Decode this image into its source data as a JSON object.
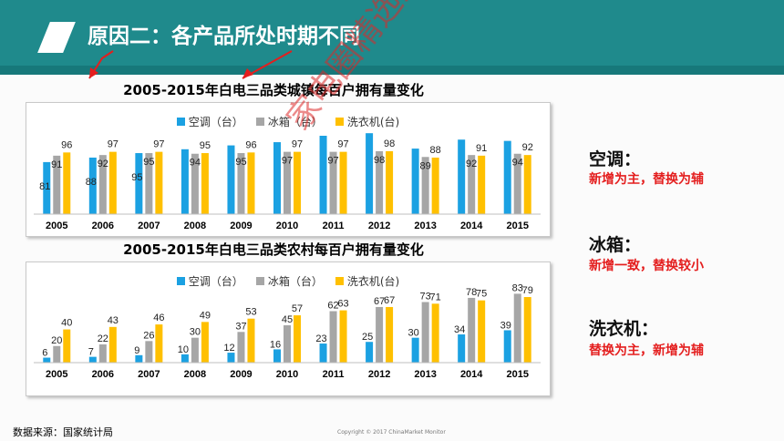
{
  "header": {
    "title": "原因二：各产品所处时期不同"
  },
  "colors": {
    "ac": "#1ba1e2",
    "fridge": "#a6a6a6",
    "washer": "#ffc000",
    "header": "#1f8a8c",
    "accent_red": "#e41e1e"
  },
  "chart_data": [
    {
      "type": "bar",
      "title": "2005-2015年白电三品类城镇每百户拥有量变化",
      "categories": [
        "2005",
        "2006",
        "2007",
        "2008",
        "2009",
        "2010",
        "2011",
        "2012",
        "2013",
        "2014",
        "2015"
      ],
      "series": [
        {
          "name": "空调（台）",
          "values": [
            81,
            88,
            95,
            101,
            107,
            112,
            122,
            126,
            102,
            116,
            114
          ]
        },
        {
          "name": "冰箱（台）",
          "values": [
            91,
            92,
            95,
            94,
            95,
            97,
            97,
            98,
            89,
            92,
            94
          ]
        },
        {
          "name": "洗衣机(台)",
          "values": [
            96,
            97,
            97,
            95,
            96,
            97,
            97,
            98,
            88,
            91,
            92
          ]
        }
      ],
      "data_labels": {
        "空调（台）": [
          "81",
          "88",
          "95",
          "",
          "",
          "",
          "",
          "",
          "",
          "",
          ""
        ],
        "冰箱（台）": [
          "91",
          "92",
          "95",
          "94",
          "95",
          "97",
          "97",
          "98",
          "89",
          "92",
          "94"
        ],
        "洗衣机(台)": [
          "96",
          "97",
          "97",
          "95",
          "96",
          "97",
          "97",
          "98",
          "88",
          "91",
          "92"
        ]
      }
    },
    {
      "type": "bar",
      "title": "2005-2015年白电三品类农村每百户拥有量变化",
      "categories": [
        "2005",
        "2006",
        "2007",
        "2008",
        "2009",
        "2010",
        "2011",
        "2012",
        "2013",
        "2014",
        "2015"
      ],
      "series": [
        {
          "name": "空调（台）",
          "values": [
            6,
            7,
            9,
            10,
            12,
            16,
            23,
            25,
            30,
            34,
            39
          ]
        },
        {
          "name": "冰箱（台）",
          "values": [
            20,
            22,
            26,
            30,
            37,
            45,
            62,
            67,
            73,
            78,
            83
          ]
        },
        {
          "name": "洗衣机(台)",
          "values": [
            40,
            43,
            46,
            49,
            53,
            57,
            63,
            67,
            71,
            75,
            79
          ]
        }
      ],
      "data_labels": {
        "空调（台）": [
          "6",
          "7",
          "9",
          "10",
          "12",
          "16",
          "23",
          "25",
          "30",
          "34",
          "39"
        ],
        "冰箱（台）": [
          "20",
          "22",
          "26",
          "30",
          "37",
          "45",
          "62",
          "67",
          "73",
          "78",
          "83"
        ],
        "洗衣机(台)": [
          "40",
          "43",
          "46",
          "49",
          "53",
          "57",
          "63",
          "67",
          "71",
          "75",
          "79"
        ]
      }
    }
  ],
  "side": [
    {
      "name": "空调：",
      "note": "新增为主，替换为辅"
    },
    {
      "name": "冰箱：",
      "note": "新增一致，替换较小"
    },
    {
      "name": "洗衣机：",
      "note": "替换为主，新增为辅"
    }
  ],
  "footer": {
    "source": "数据来源：国家统计局",
    "copyright": "Copyright © 2017 ChinaMarket Monitor"
  },
  "watermark": "家电圈精选汇"
}
